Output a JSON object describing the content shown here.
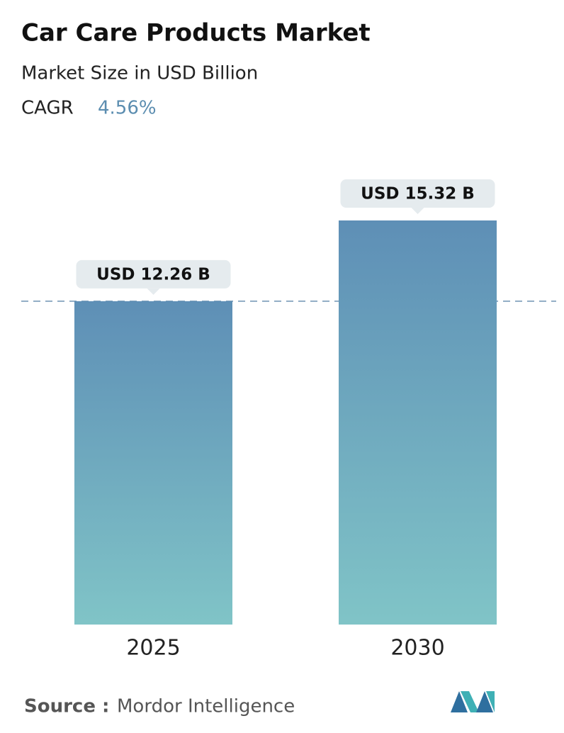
{
  "chart_data": {
    "type": "bar",
    "title": "Car Care Products Market",
    "subtitle": "Market Size in USD Billion",
    "cagr_label": "CAGR",
    "cagr_value": "4.56%",
    "categories": [
      "2025",
      "2030"
    ],
    "values": [
      12.26,
      15.32
    ],
    "value_labels": [
      "USD 12.26 B",
      "USD 15.32 B"
    ],
    "colors": [
      "#5e8fb6",
      "#80c4c7"
    ],
    "source_label": "Source :",
    "source": "Mordor Intelligence"
  }
}
